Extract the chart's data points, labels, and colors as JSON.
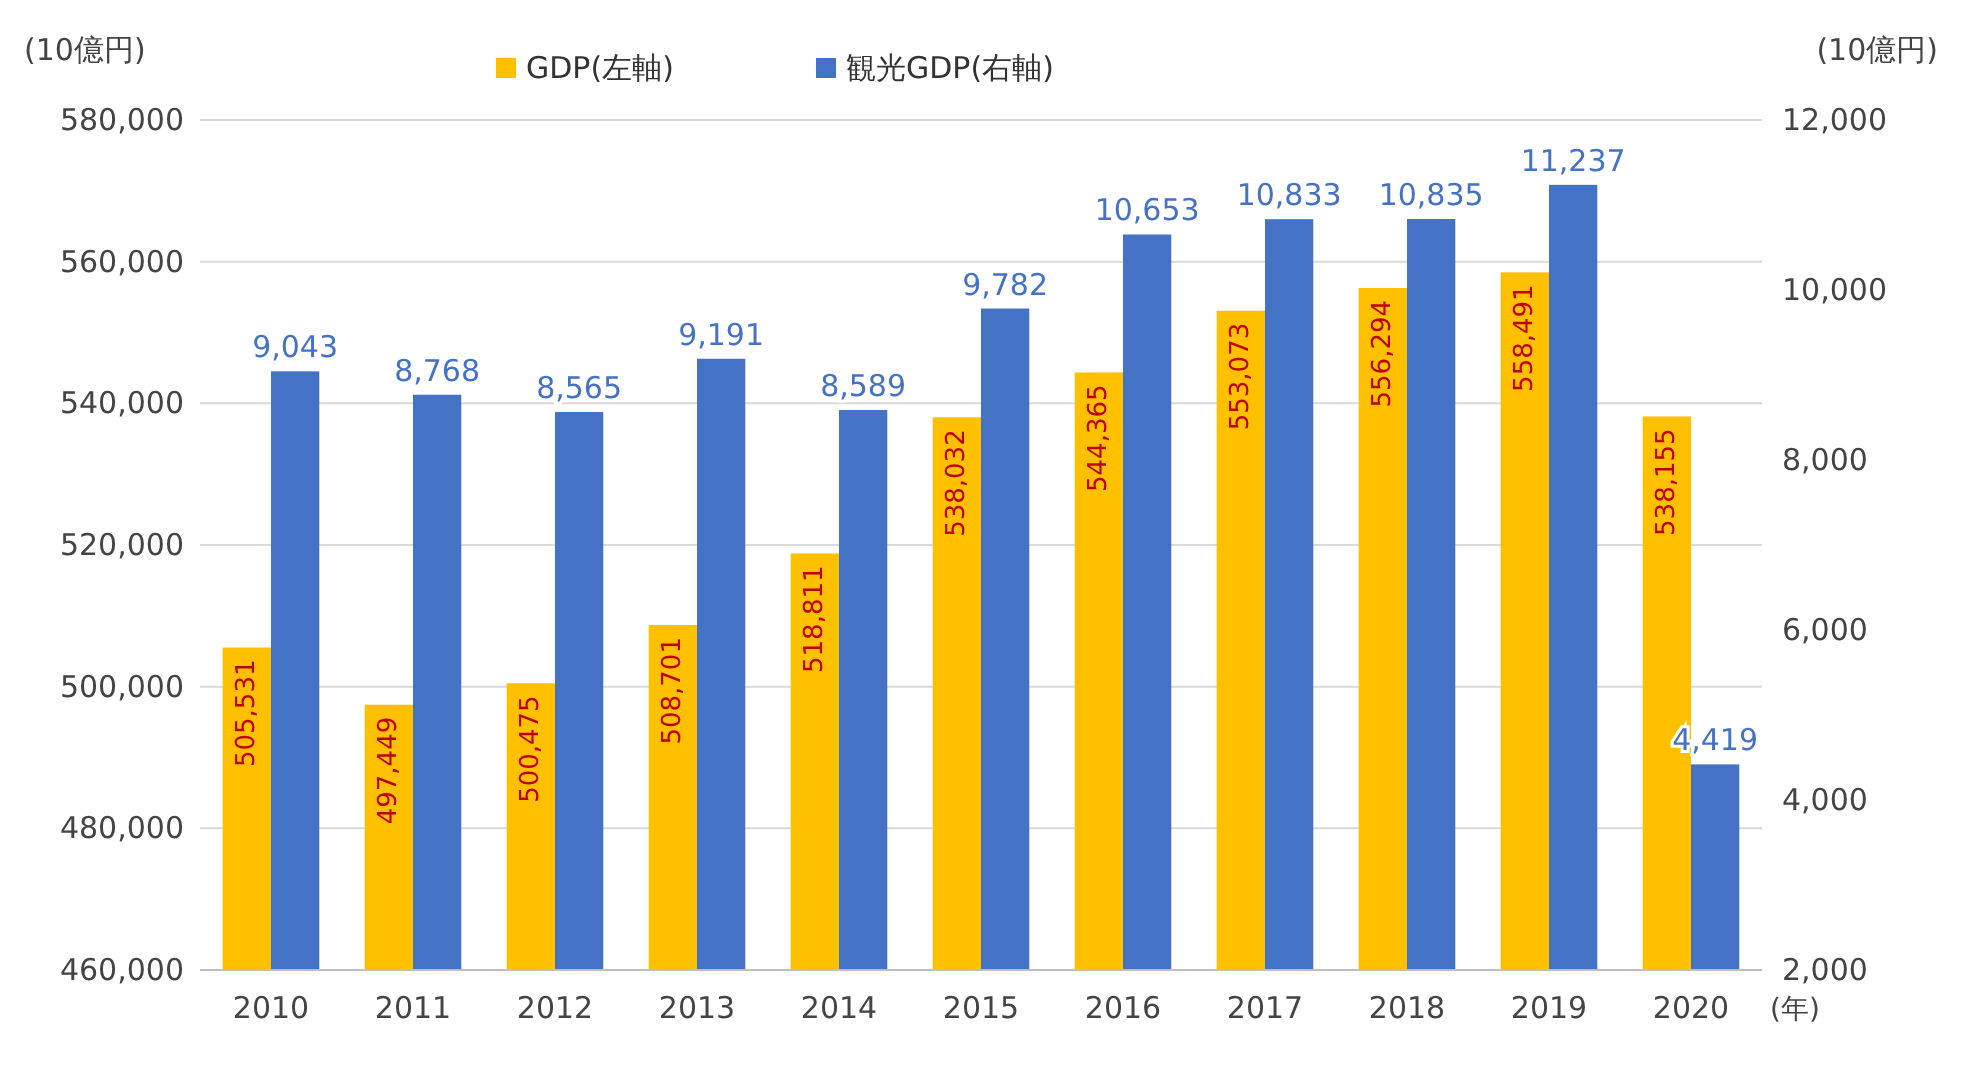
{
  "chart_data": {
    "type": "bar",
    "categories": [
      "2010",
      "2011",
      "2012",
      "2013",
      "2014",
      "2015",
      "2016",
      "2017",
      "2018",
      "2019",
      "2020"
    ],
    "ylabel": "(10億円)",
    "y2label": "(10億円)",
    "xlabel": "(年)",
    "series": [
      {
        "name": "GDP(左軸)",
        "color": "#ffc000",
        "values": [
          505531,
          497449,
          500475,
          508701,
          518811,
          538032,
          544365,
          553073,
          556294,
          558491,
          538155
        ],
        "value_labels": [
          "505,531",
          "497,449",
          "500,475",
          "508,701",
          "518,811",
          "538,032",
          "544,365",
          "553,073",
          "556,294",
          "558,491",
          "538,155"
        ]
      },
      {
        "name": "観光GDP(右軸)",
        "color": "#4472c4",
        "axis": "y2",
        "values": [
          9043,
          8768,
          8565,
          9191,
          8589,
          9782,
          10653,
          10833,
          10835,
          11237,
          4419
        ],
        "value_labels": [
          "9,043",
          "8,768",
          "8,565",
          "9,191",
          "8,589",
          "9,782",
          "10,653",
          "10,833",
          "10,835",
          "11,237",
          "4,419"
        ]
      }
    ],
    "ylim": [
      460000,
      580000
    ],
    "yticks": [
      {
        "value": 460000,
        "label": "460,000"
      },
      {
        "value": 480000,
        "label": "480,000"
      },
      {
        "value": 500000,
        "label": "500,000"
      },
      {
        "value": 520000,
        "label": "520,000"
      },
      {
        "value": 540000,
        "label": "540,000"
      },
      {
        "value": 560000,
        "label": "560,000"
      },
      {
        "value": 580000,
        "label": "580,000"
      }
    ],
    "y2lim": [
      2000,
      12000
    ],
    "y2ticks": [
      {
        "value": 2000,
        "label": "2,000"
      },
      {
        "value": 4000,
        "label": "4,000"
      },
      {
        "value": 6000,
        "label": "6,000"
      },
      {
        "value": 8000,
        "label": "8,000"
      },
      {
        "value": 10000,
        "label": "10,000"
      },
      {
        "value": 12000,
        "label": "12,000"
      }
    ],
    "grid": "y",
    "legend": "top"
  }
}
